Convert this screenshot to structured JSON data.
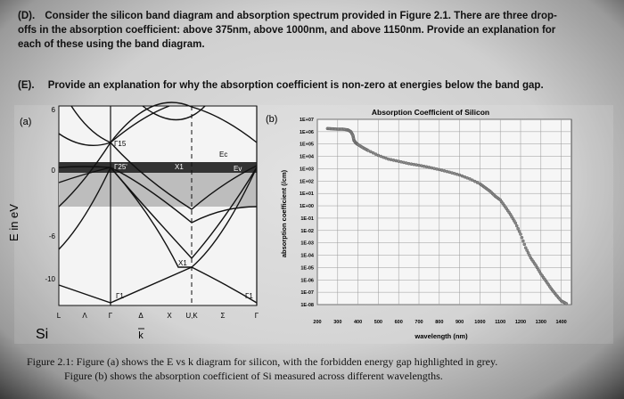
{
  "questions": {
    "d_label": "(D).",
    "d_line1": "Consider the silicon band diagram and absorption spectrum provided in Figure 2.1. There are three drop-",
    "d_line2": "offs in the absorption coefficient: above 375nm, above 1000nm, and above 1150nm. Provide an explanation for",
    "d_line3": "each of these using the band diagram.",
    "e_label": "(E).",
    "e_text": "Provide an explanation for why the absorption coefficient is non-zero at energies below the band gap."
  },
  "panel_a": {
    "panel_label": "(a)",
    "y_axis_label": "E in eV",
    "y_ticks": [
      "6",
      "0",
      "-6",
      "-10"
    ],
    "k_labels": [
      "L",
      "Λ",
      "Γ",
      "Δ",
      "X",
      "U,K",
      "Σ",
      "Γ"
    ],
    "point_labels": {
      "gamma15": "Γ15",
      "gamma25": "Γ25'",
      "x1_top": "X1",
      "x1_bottom": "X1",
      "gamma1_left": "Γ1",
      "gamma1_right": "Γ1"
    },
    "band_labels": {
      "ec": "Ec",
      "ev": "Ev"
    },
    "material": "Si",
    "k_axis": "k",
    "colors": {
      "gap": "#bdbdbd",
      "valence_band": "#333333",
      "lines": "#111111"
    }
  },
  "panel_b": {
    "panel_label": "(b)",
    "title": "Absorption Coefficient of Silicon",
    "ylabel": "absorption coefficient (/cm)",
    "xlabel": "wavelength (nm)",
    "y_ticks": [
      "1E+07",
      "1E+06",
      "1E+05",
      "1E+04",
      "1E+03",
      "1E+02",
      "1E+01",
      "1E+00",
      "1E-01",
      "1E-02",
      "1E-03",
      "1E-04",
      "1E-05",
      "1E-06",
      "1E-07",
      "1E-08"
    ],
    "x_ticks": [
      "200",
      "300",
      "400",
      "500",
      "600",
      "700",
      "800",
      "900",
      "1000",
      "1100",
      "1200",
      "1300",
      "1400"
    ]
  },
  "chart_data": {
    "type": "line",
    "title": "Absorption Coefficient of Silicon",
    "xlabel": "wavelength (nm)",
    "ylabel": "absorption coefficient (/cm)",
    "xlim": [
      200,
      1450
    ],
    "ylim": [
      1e-08,
      10000000.0
    ],
    "y_scale": "log",
    "grid": true,
    "series": [
      {
        "x": [
          250,
          275,
          300,
          325,
          350,
          365,
          375,
          380,
          390,
          400,
          425,
          450,
          500,
          550,
          600,
          650,
          700,
          750,
          800,
          850,
          900,
          950,
          1000,
          1025,
          1050,
          1075,
          1100,
          1125,
          1150,
          1175,
          1200,
          1225,
          1250,
          1275,
          1300,
          1325,
          1350,
          1375,
          1400,
          1425
        ],
        "y": [
          1800000.0,
          1700000.0,
          1600000.0,
          1600000.0,
          1400000.0,
          1000000.0,
          500000.0,
          200000.0,
          120000.0,
          90000.0,
          50000.0,
          30000.0,
          12000.0,
          6000.0,
          4000.0,
          2600.0,
          1900.0,
          1300.0,
          850.0,
          530.0,
          310.0,
          150.0,
          60.0,
          30.0,
          15.0,
          6,
          3,
          0.8,
          0.2,
          0.04,
          0.005,
          0.0004,
          6e-05,
          1.5e-05,
          3e-06,
          8e-07,
          2e-07,
          6e-08,
          2e-08,
          1.2e-08
        ]
      }
    ]
  },
  "caption": {
    "line1": "Figure 2.1: Figure (a) shows the E vs k diagram for silicon, with the forbidden energy gap highlighted in grey.",
    "line2": "Figure (b) shows the absorption coefficient of Si measured across different wavelengths."
  }
}
